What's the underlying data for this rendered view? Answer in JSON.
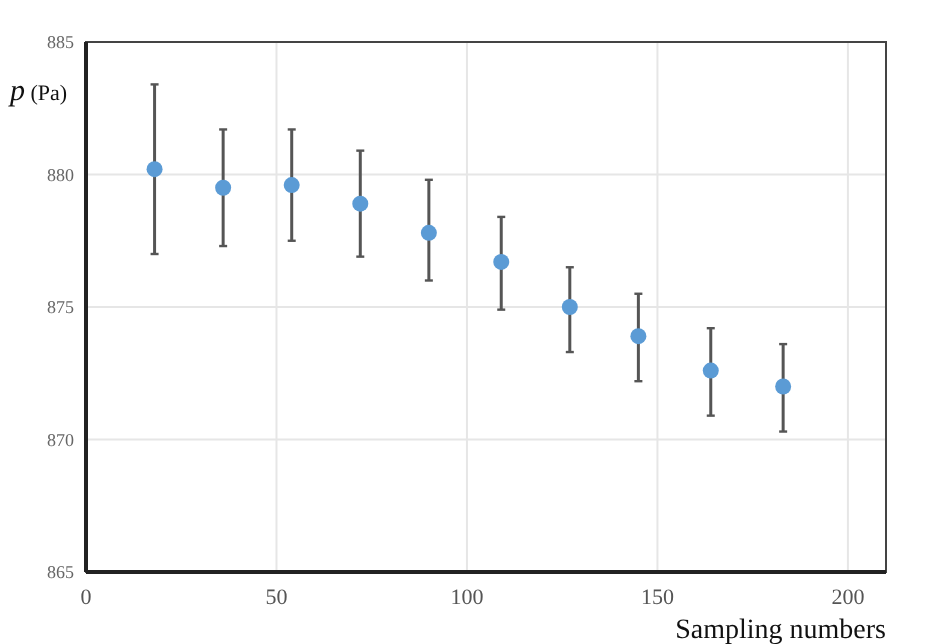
{
  "chart_data": {
    "type": "scatter",
    "xlabel": "Sampling numbers",
    "ylabel": "p (Pa)",
    "x": [
      18,
      36,
      54,
      72,
      90,
      109,
      127,
      145,
      164,
      183
    ],
    "series": [
      {
        "color": "#5b9bd5",
        "values": [
          880.2,
          879.5,
          879.6,
          878.9,
          877.8,
          876.7,
          875.0,
          873.9,
          872.6,
          872.0
        ],
        "errors": [
          [
            877.0,
            883.4
          ],
          [
            877.3,
            881.7
          ],
          [
            877.5,
            881.7
          ],
          [
            876.9,
            880.9
          ],
          [
            876.0,
            879.8
          ],
          [
            874.9,
            878.4
          ],
          [
            873.3,
            876.5
          ],
          [
            872.2,
            875.5
          ],
          [
            870.9,
            874.2
          ],
          [
            870.3,
            873.6
          ]
        ]
      }
    ],
    "xlim": [
      0,
      210
    ],
    "xticks": [
      0,
      50,
      100,
      150,
      200
    ],
    "ylim": [
      865,
      885
    ],
    "yticks": [
      865,
      870,
      875,
      880,
      885
    ],
    "grid": true,
    "marker": "circle"
  }
}
